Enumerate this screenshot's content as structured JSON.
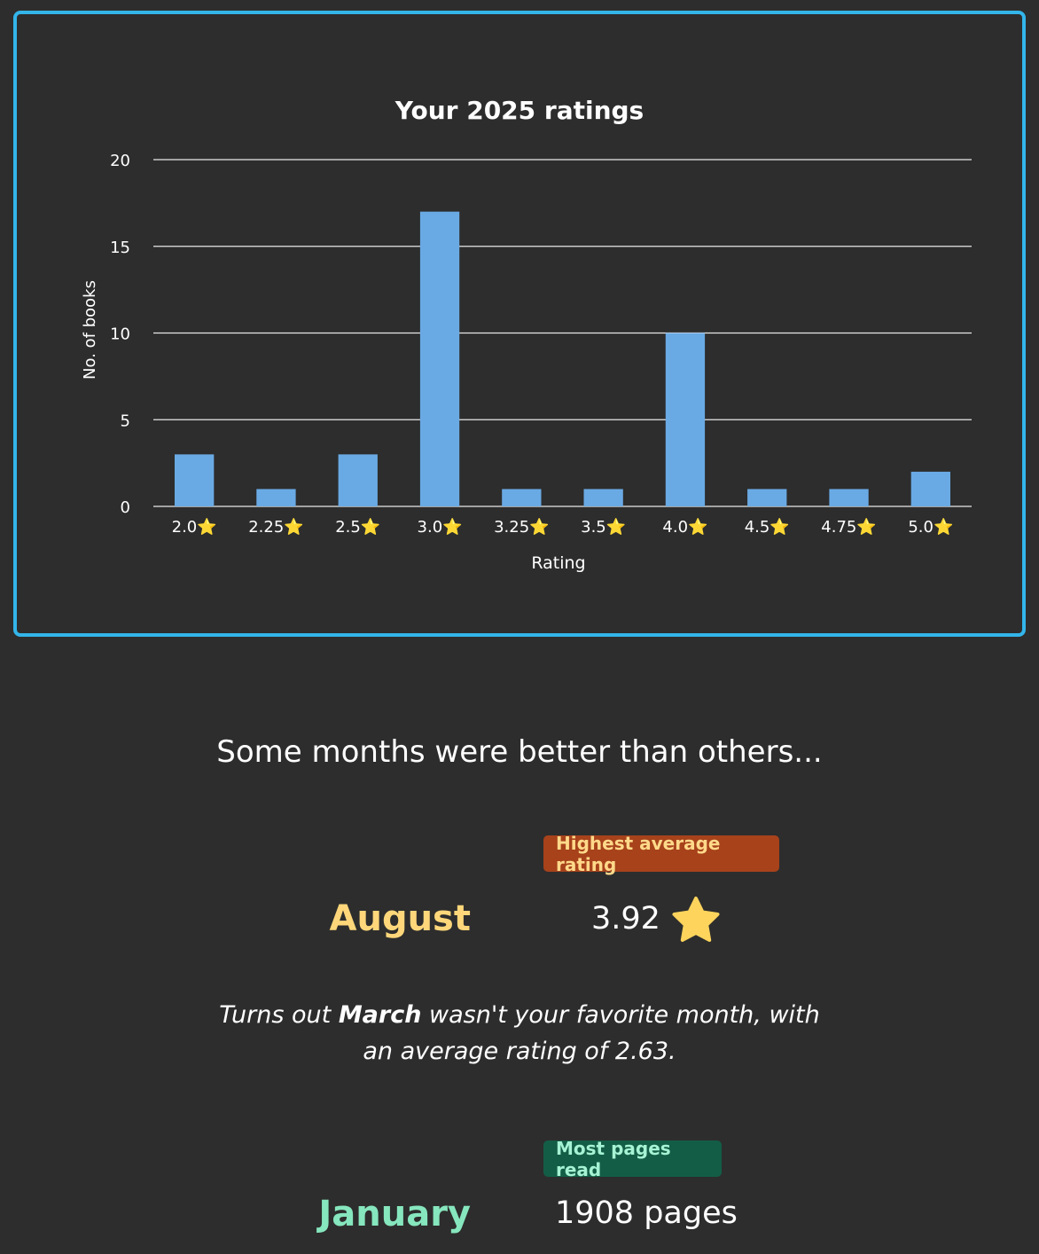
{
  "chart_data": {
    "type": "bar",
    "title": "Your 2025 ratings",
    "xlabel": "Rating",
    "ylabel": "No. of books",
    "categories": [
      "2.0⭐",
      "2.25⭐",
      "2.5⭐",
      "3.0⭐",
      "3.25⭐",
      "3.5⭐",
      "4.0⭐",
      "4.5⭐",
      "4.75⭐",
      "5.0⭐"
    ],
    "values": [
      3,
      1,
      3,
      17,
      1,
      1,
      10,
      1,
      1,
      2
    ],
    "ylim": [
      0,
      20
    ],
    "yticks": [
      0,
      5,
      10,
      15,
      20
    ],
    "grid": true,
    "colors": {
      "bar": "#6aaae4",
      "border": "#33b5ea",
      "grid": "#e8e8e8"
    }
  },
  "months": {
    "heading": "Some months were better than others...",
    "highest_rating": {
      "badge": "Highest average rating",
      "month": "August",
      "value": "3.92",
      "icon": "star-icon",
      "colors": {
        "badge_bg": "#a7421b",
        "badge_text": "#ffd98a",
        "month": "#ffd77a",
        "star": "#ffd45c"
      }
    },
    "worst": {
      "prefix": "Turns out ",
      "month": "March",
      "suffix": " wasn't your favorite month, with an average rating of 2.63."
    },
    "most_pages": {
      "badge": "Most pages read",
      "month": "January",
      "value": "1908 pages",
      "colors": {
        "badge_bg": "#135d46",
        "badge_text": "#a5f3d4",
        "month": "#86e6bd"
      }
    }
  }
}
